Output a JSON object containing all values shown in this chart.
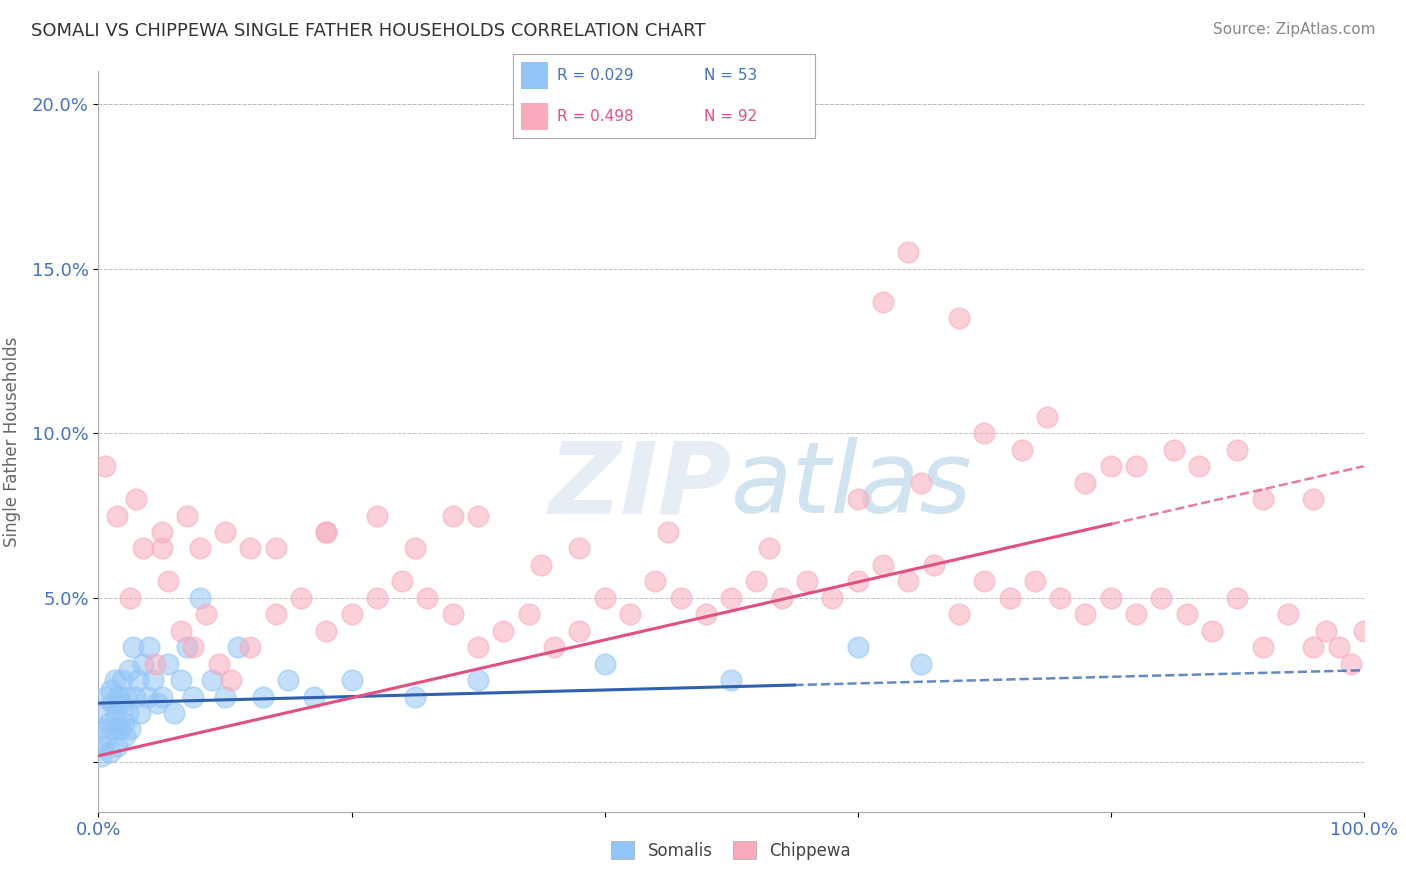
{
  "title": "SOMALI VS CHIPPEWA SINGLE FATHER HOUSEHOLDS CORRELATION CHART",
  "source_text": "Source: ZipAtlas.com",
  "ylabel": "Single Father Households",
  "xlabel": "",
  "xlim": [
    0,
    100
  ],
  "ylim": [
    -1.5,
    21
  ],
  "ytick_positions": [
    0,
    5,
    10,
    15,
    20
  ],
  "ytick_labels": [
    "",
    "5.0%",
    "10.0%",
    "15.0%",
    "20.0%"
  ],
  "legend_r1": "R = 0.029",
  "legend_n1": "N = 53",
  "legend_r2": "R = 0.498",
  "legend_n2": "N = 92",
  "somali_color": "#92C5F7",
  "chippewa_color": "#F9AABB",
  "somali_line_color": "#3060B0",
  "chippewa_line_color": "#E05080",
  "watermark_zip": "ZIP",
  "watermark_atlas": "atlas",
  "background_color": "#FFFFFF",
  "somali_x": [
    0.2,
    0.3,
    0.4,
    0.5,
    0.6,
    0.7,
    0.8,
    0.9,
    1.0,
    1.1,
    1.2,
    1.3,
    1.4,
    1.5,
    1.6,
    1.7,
    1.8,
    1.9,
    2.0,
    2.1,
    2.2,
    2.3,
    2.4,
    2.5,
    2.7,
    2.9,
    3.1,
    3.3,
    3.5,
    3.8,
    4.0,
    4.3,
    4.6,
    5.0,
    5.5,
    6.0,
    6.5,
    7.0,
    7.5,
    8.0,
    9.0,
    10.0,
    11.0,
    13.0,
    15.0,
    17.0,
    20.0,
    25.0,
    30.0,
    40.0,
    50.0,
    60.0,
    65.0
  ],
  "somali_y": [
    0.2,
    1.0,
    0.5,
    1.5,
    2.0,
    0.8,
    1.2,
    0.3,
    2.2,
    1.8,
    1.0,
    2.5,
    1.5,
    0.5,
    2.0,
    1.0,
    1.8,
    2.5,
    1.2,
    0.8,
    2.0,
    1.5,
    2.8,
    1.0,
    3.5,
    2.0,
    2.5,
    1.5,
    3.0,
    2.0,
    3.5,
    2.5,
    1.8,
    2.0,
    3.0,
    1.5,
    2.5,
    3.5,
    2.0,
    5.0,
    2.5,
    2.0,
    3.5,
    2.0,
    2.5,
    2.0,
    2.5,
    2.0,
    2.5,
    3.0,
    2.5,
    3.5,
    3.0
  ],
  "chippewa_x": [
    0.5,
    1.5,
    2.5,
    3.5,
    4.5,
    5.5,
    6.5,
    7.5,
    8.5,
    9.5,
    10.5,
    12.0,
    14.0,
    16.0,
    18.0,
    20.0,
    22.0,
    24.0,
    26.0,
    28.0,
    30.0,
    32.0,
    34.0,
    36.0,
    38.0,
    40.0,
    42.0,
    44.0,
    46.0,
    48.0,
    50.0,
    52.0,
    54.0,
    56.0,
    58.0,
    60.0,
    62.0,
    64.0,
    66.0,
    68.0,
    70.0,
    72.0,
    74.0,
    76.0,
    78.0,
    80.0,
    82.0,
    84.0,
    86.0,
    88.0,
    90.0,
    92.0,
    94.0,
    96.0,
    97.0,
    98.0,
    99.0,
    100.0,
    3.0,
    5.0,
    7.0,
    10.0,
    14.0,
    18.0,
    25.0,
    30.0,
    38.0,
    45.0,
    53.0,
    60.0,
    65.0,
    70.0,
    75.0,
    80.0,
    85.0,
    90.0,
    62.0,
    64.0,
    68.0,
    73.0,
    78.0,
    82.0,
    87.0,
    92.0,
    96.0,
    5.0,
    8.0,
    12.0,
    18.0,
    22.0,
    28.0,
    35.0
  ],
  "chippewa_y": [
    9.0,
    7.5,
    5.0,
    6.5,
    3.0,
    5.5,
    4.0,
    3.5,
    4.5,
    3.0,
    2.5,
    3.5,
    4.5,
    5.0,
    4.0,
    4.5,
    5.0,
    5.5,
    5.0,
    4.5,
    3.5,
    4.0,
    4.5,
    3.5,
    4.0,
    5.0,
    4.5,
    5.5,
    5.0,
    4.5,
    5.0,
    5.5,
    5.0,
    5.5,
    5.0,
    5.5,
    6.0,
    5.5,
    6.0,
    4.5,
    5.5,
    5.0,
    5.5,
    5.0,
    4.5,
    5.0,
    4.5,
    5.0,
    4.5,
    4.0,
    5.0,
    3.5,
    4.5,
    3.5,
    4.0,
    3.5,
    3.0,
    4.0,
    8.0,
    7.0,
    7.5,
    7.0,
    6.5,
    7.0,
    6.5,
    7.5,
    6.5,
    7.0,
    6.5,
    8.0,
    8.5,
    10.0,
    10.5,
    9.0,
    9.5,
    9.5,
    14.0,
    15.5,
    13.5,
    9.5,
    8.5,
    9.0,
    9.0,
    8.0,
    8.0,
    6.5,
    6.5,
    6.5,
    7.0,
    7.5,
    7.5,
    6.0
  ],
  "somali_line_start_x": 0,
  "somali_line_start_y": 1.8,
  "somali_line_end_x": 100,
  "somali_line_end_y": 2.8,
  "somali_solid_end_x": 55,
  "chippewa_line_start_x": 0,
  "chippewa_line_start_y": 0.2,
  "chippewa_line_end_x": 100,
  "chippewa_line_end_y": 9.0
}
